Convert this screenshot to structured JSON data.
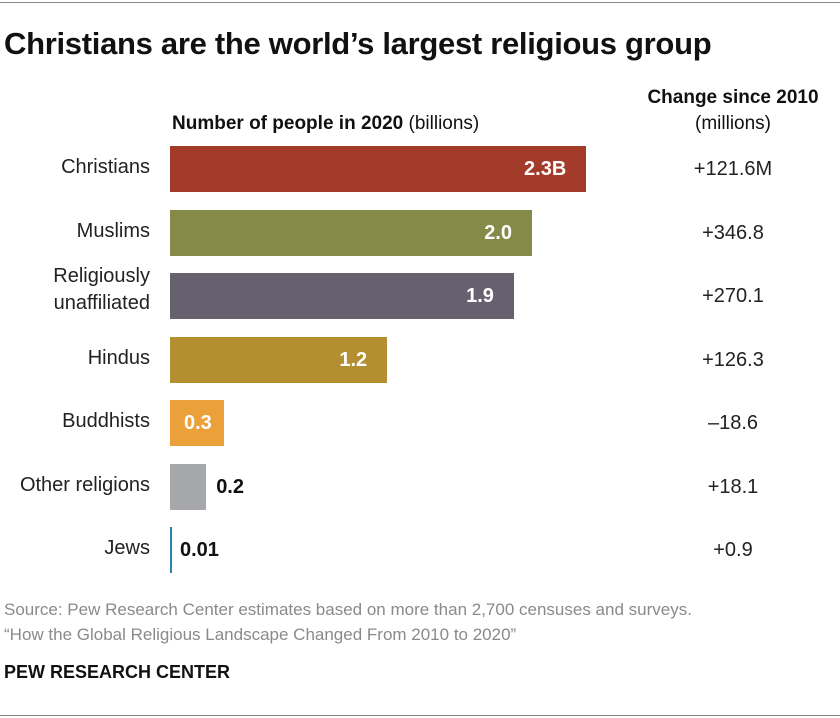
{
  "chart_data": {
    "type": "bar",
    "orientation": "horizontal",
    "title": "Christians are the world’s largest religious group",
    "subtitle_bold": "Number of people in 2020",
    "subtitle_unit": "(billions)",
    "change_header": "Change since 2010",
    "change_unit": "(millions)",
    "categories": [
      "Christians",
      "Muslims",
      "Religiously unaffiliated",
      "Hindus",
      "Buddhists",
      "Other religions",
      "Jews"
    ],
    "values": [
      2.3,
      2.0,
      1.9,
      1.2,
      0.3,
      0.2,
      0.01
    ],
    "value_labels": [
      "2.3B",
      "2.0",
      "1.9",
      "1.2",
      "0.3",
      "0.2",
      "0.01"
    ],
    "change_labels": [
      "+121.6M",
      "+346.8",
      "+270.1",
      "+126.3",
      "–18.6",
      "+18.1",
      "+0.9"
    ],
    "change_values": [
      121.6,
      346.8,
      270.1,
      126.3,
      -18.6,
      18.1,
      0.9
    ],
    "colors": [
      "#a33b2a",
      "#868a48",
      "#67616f",
      "#b38f31",
      "#eba03a",
      "#a5a7aa",
      "#2b84ad"
    ],
    "grid": false,
    "legend": "none"
  },
  "footer": {
    "source_line1": "Source: Pew Research Center estimates based on more than 2,700 censuses and surveys.",
    "source_line2": "“How the Global Religious Landscape Changed From 2010 to 2020”",
    "brand": "PEW RESEARCH CENTER"
  }
}
